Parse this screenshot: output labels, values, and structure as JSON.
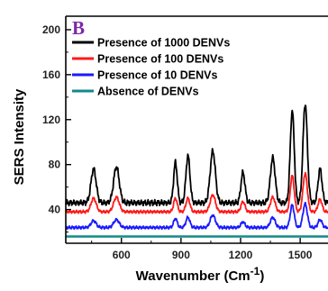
{
  "chart_data": {
    "type": "line",
    "panel_label": "B",
    "xlabel_main": "Wavenumber (Cm",
    "xlabel_sup": "-1",
    "xlabel_close": ")",
    "ylabel": "SERS Intensity",
    "xlim": [
      320,
      1640
    ],
    "ylim": [
      10,
      212
    ],
    "x_ticks": [
      600,
      900,
      1200,
      1500
    ],
    "y_ticks": [
      40,
      80,
      120,
      160,
      200
    ],
    "legend_position": "top-left",
    "colors": {
      "panel_letter": "#7a2aa8",
      "series": [
        "#000000",
        "#ff1a1a",
        "#1a1aff",
        "#138a8a"
      ]
    },
    "peaks": [
      {
        "x": 460,
        "w": 13
      },
      {
        "x": 575,
        "w": 14
      },
      {
        "x": 872,
        "w": 9
      },
      {
        "x": 935,
        "w": 10
      },
      {
        "x": 1060,
        "w": 13
      },
      {
        "x": 1212,
        "w": 10
      },
      {
        "x": 1362,
        "w": 12
      },
      {
        "x": 1460,
        "w": 10
      },
      {
        "x": 1525,
        "w": 11
      },
      {
        "x": 1600,
        "w": 10
      }
    ],
    "series": [
      {
        "name": "Presence of 1000 DENVs",
        "baseline": 46,
        "amplitudes": [
          30,
          32,
          36,
          42,
          46,
          27,
          40,
          82,
          88,
          30
        ]
      },
      {
        "name": "Presence of 100 DENVs",
        "baseline": 38,
        "amplitudes": [
          12,
          13,
          12,
          12,
          15,
          9,
          13,
          32,
          34,
          11
        ]
      },
      {
        "name": "Presence of 10 DENVs",
        "baseline": 24,
        "amplitudes": [
          6,
          7,
          8,
          9,
          11,
          5,
          9,
          20,
          21,
          7
        ]
      },
      {
        "name": "Absence of  DENVs",
        "baseline": 16,
        "amplitudes": [
          0,
          0,
          0,
          0,
          0,
          0,
          0,
          0,
          0,
          0
        ]
      }
    ]
  }
}
